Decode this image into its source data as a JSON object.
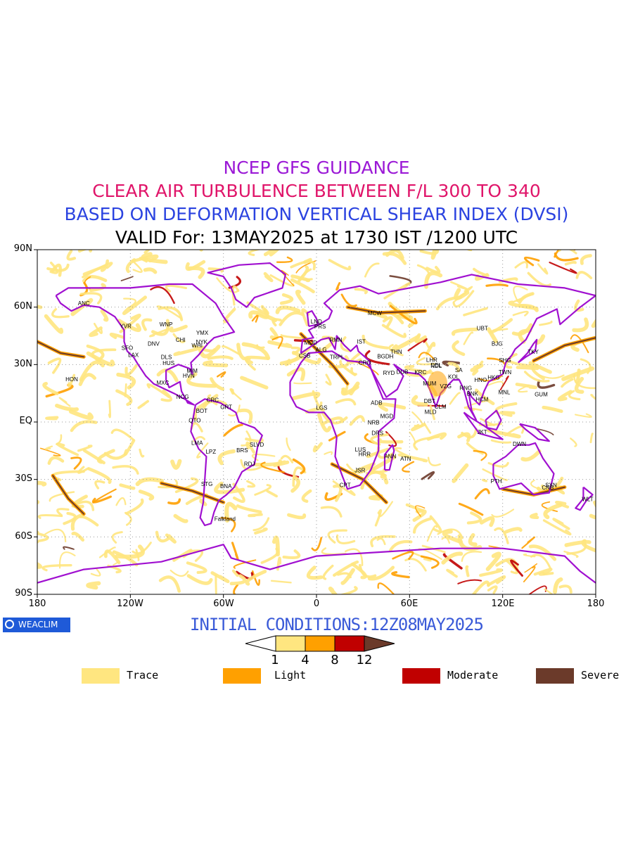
{
  "titles": {
    "line1": "NCEP GFS GUIDANCE",
    "line2": "CLEAR AIR TURBULENCE BETWEEN F/L 300 TO 340",
    "line3": "BASED ON DEFORMATION VERTICAL SHEAR INDEX (DVSI)",
    "line4": "VALID For: 13MAY2025 at 1730 IST /1200 UTC"
  },
  "colors": {
    "line1": "#9b19d6",
    "line2": "#e0156a",
    "line3": "#2b43e0",
    "line4": "#000000",
    "trace": "#ffe680",
    "light": "#ffa000",
    "moderate": "#c00000",
    "severe": "#6b3a2a",
    "coast": "#a010d0"
  },
  "axes": {
    "y_ticks": [
      "90N",
      "60N",
      "30N",
      "EQ",
      "30S",
      "60S",
      "90S"
    ],
    "x_ticks": [
      "180",
      "120W",
      "60W",
      "0",
      "60E",
      "120E",
      "180"
    ]
  },
  "logo": {
    "text": "WEACLIM"
  },
  "initial_conditions": "INITIAL CONDITIONS:12Z08MAY2025",
  "colorbar": {
    "labels": [
      "1",
      "4",
      "8",
      "12"
    ]
  },
  "legend": [
    {
      "label": "Trace",
      "color": "#ffe680"
    },
    {
      "label": "Light",
      "color": "#ffa000"
    },
    {
      "label": "Moderate",
      "color": "#c00000"
    },
    {
      "label": "Severe",
      "color": "#6b3a2a"
    }
  ],
  "stations": [
    {
      "name": "ANC",
      "lon": -150,
      "lat": 61
    },
    {
      "name": "YVR",
      "lon": -123,
      "lat": 49
    },
    {
      "name": "SFO",
      "lon": -122,
      "lat": 37.6
    },
    {
      "name": "LAX",
      "lon": -118,
      "lat": 34
    },
    {
      "name": "DNV",
      "lon": -105,
      "lat": 39.8
    },
    {
      "name": "WNP",
      "lon": -97,
      "lat": 50
    },
    {
      "name": "YMX",
      "lon": -73.7,
      "lat": 45.5
    },
    {
      "name": "NYK",
      "lon": -74,
      "lat": 40.7
    },
    {
      "name": "CHI",
      "lon": -87.6,
      "lat": 41.9
    },
    {
      "name": "DLS",
      "lon": -96.8,
      "lat": 32.8
    },
    {
      "name": "HUS",
      "lon": -95.4,
      "lat": 29.8
    },
    {
      "name": "WHI",
      "lon": -77,
      "lat": 38.9
    },
    {
      "name": "MIM",
      "lon": -80.2,
      "lat": 25.8
    },
    {
      "name": "HVN",
      "lon": -82.4,
      "lat": 23.1
    },
    {
      "name": "MXC",
      "lon": -99.1,
      "lat": 19.4
    },
    {
      "name": "HON",
      "lon": -157.8,
      "lat": 21.3
    },
    {
      "name": "NCG",
      "lon": -86.3,
      "lat": 12.1
    },
    {
      "name": "CRC",
      "lon": -66.9,
      "lat": 10.5
    },
    {
      "name": "BOT",
      "lon": -74,
      "lat": 4.7
    },
    {
      "name": "GRT",
      "lon": -58.2,
      "lat": 6.8
    },
    {
      "name": "QTO",
      "lon": -78.5,
      "lat": -0.2
    },
    {
      "name": "LMA",
      "lon": -77,
      "lat": -12
    },
    {
      "name": "LPZ",
      "lon": -68.1,
      "lat": -16.5
    },
    {
      "name": "BRS",
      "lon": -47.9,
      "lat": -15.8
    },
    {
      "name": "SLVD",
      "lon": -38.5,
      "lat": -12.9
    },
    {
      "name": "RDJ",
      "lon": -43.2,
      "lat": -22.9
    },
    {
      "name": "STG",
      "lon": -70.7,
      "lat": -33.4
    },
    {
      "name": "BNA",
      "lon": -58.4,
      "lat": -34.6
    },
    {
      "name": "Falkland",
      "lon": -59,
      "lat": -51.7
    },
    {
      "name": "LND",
      "lon": -0.1,
      "lat": 51.5
    },
    {
      "name": "PRS",
      "lon": 2.3,
      "lat": 48.9
    },
    {
      "name": "MDD",
      "lon": -3.7,
      "lat": 40.4
    },
    {
      "name": "ALG",
      "lon": 3,
      "lat": 36.7
    },
    {
      "name": "CSB",
      "lon": -7.6,
      "lat": 33.6
    },
    {
      "name": "TRPL",
      "lon": 13.2,
      "lat": 32.9
    },
    {
      "name": "RMN",
      "lon": 12.5,
      "lat": 41.9
    },
    {
      "name": "IST",
      "lon": 28.9,
      "lat": 41
    },
    {
      "name": "MCW",
      "lon": 37.6,
      "lat": 55.8
    },
    {
      "name": "CRO",
      "lon": 31.2,
      "lat": 30
    },
    {
      "name": "BGDH",
      "lon": 44.4,
      "lat": 33.3
    },
    {
      "name": "THN",
      "lon": 51.4,
      "lat": 35.7
    },
    {
      "name": "RYD",
      "lon": 46.7,
      "lat": 24.7
    },
    {
      "name": "DUB",
      "lon": 55.3,
      "lat": 25.2
    },
    {
      "name": "KRC",
      "lon": 67,
      "lat": 24.9
    },
    {
      "name": "ADB",
      "lon": 38.7,
      "lat": 9
    },
    {
      "name": "MGD",
      "lon": 45.3,
      "lat": 2
    },
    {
      "name": "NRB",
      "lon": 36.8,
      "lat": -1.3
    },
    {
      "name": "DRS",
      "lon": 39.3,
      "lat": -6.8
    },
    {
      "name": "ANN",
      "lon": 47.5,
      "lat": -18.9
    },
    {
      "name": "LUS",
      "lon": 28.3,
      "lat": -15.4
    },
    {
      "name": "HRR",
      "lon": 31,
      "lat": -17.8
    },
    {
      "name": "ATN",
      "lon": 57.5,
      "lat": -20.2
    },
    {
      "name": "JSR",
      "lon": 28,
      "lat": -26.2
    },
    {
      "name": "CPT",
      "lon": 18.4,
      "lat": -33.9
    },
    {
      "name": "LGS",
      "lon": 3.4,
      "lat": 6.5
    },
    {
      "name": "DEL",
      "lon": 77.1,
      "lat": 28.6
    },
    {
      "name": "MUM",
      "lon": 72.9,
      "lat": 19.1
    },
    {
      "name": "DBT",
      "lon": 72.9,
      "lat": 10
    },
    {
      "name": "CLM",
      "lon": 79.9,
      "lat": 6.9
    },
    {
      "name": "MLD",
      "lon": 73.5,
      "lat": 4.2
    },
    {
      "name": "VZG",
      "lon": 83.3,
      "lat": 17.7
    },
    {
      "name": "KOL",
      "lon": 88.4,
      "lat": 22.6
    },
    {
      "name": "NDL",
      "lon": 77.2,
      "lat": 28.3
    },
    {
      "name": "LHR",
      "lon": 74.3,
      "lat": 31.5
    },
    {
      "name": "SA",
      "lon": 91.7,
      "lat": 26.1
    },
    {
      "name": "RNG",
      "lon": 96.2,
      "lat": 16.8
    },
    {
      "name": "BNK",
      "lon": 100.5,
      "lat": 13.7
    },
    {
      "name": "HCM",
      "lon": 106.7,
      "lat": 10.8
    },
    {
      "name": "HNO",
      "lon": 105.8,
      "lat": 21
    },
    {
      "name": "HKG",
      "lon": 114.2,
      "lat": 22.3
    },
    {
      "name": "TWN",
      "lon": 121.5,
      "lat": 25
    },
    {
      "name": "MNL",
      "lon": 121,
      "lat": 14.6
    },
    {
      "name": "SHG",
      "lon": 121.5,
      "lat": 31.2
    },
    {
      "name": "BJG",
      "lon": 116.4,
      "lat": 39.9
    },
    {
      "name": "TKY",
      "lon": 139.7,
      "lat": 35.7
    },
    {
      "name": "GUM",
      "lon": 144.8,
      "lat": 13.5
    },
    {
      "name": "UBT",
      "lon": 106.9,
      "lat": 47.9
    },
    {
      "name": "JKT",
      "lon": 106.8,
      "lat": -6.2
    },
    {
      "name": "DWN",
      "lon": 130.8,
      "lat": -12.5
    },
    {
      "name": "PTH",
      "lon": 115.9,
      "lat": -32
    },
    {
      "name": "SYN",
      "lon": 151.2,
      "lat": -33.9
    },
    {
      "name": "CNB",
      "lon": 149.1,
      "lat": -35.3
    },
    {
      "name": "WLT",
      "lon": 174.8,
      "lat": -41.3
    }
  ]
}
